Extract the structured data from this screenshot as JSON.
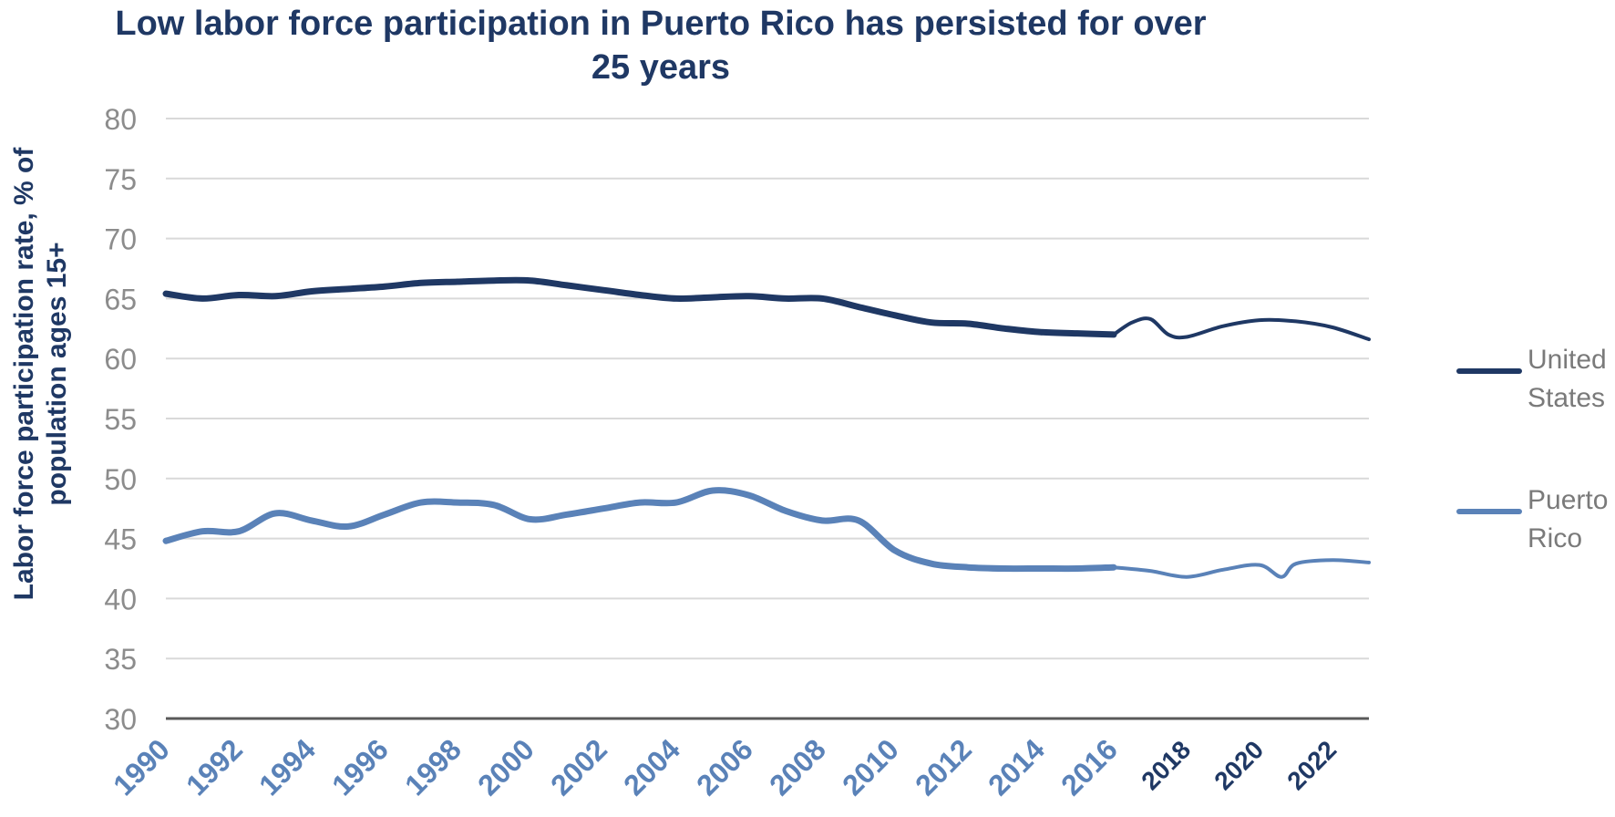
{
  "chart_data": {
    "type": "line",
    "title": "Low labor force participation in Puerto Rico has persisted for over 25 years",
    "ylabel": "Labor force participation rate, % of population ages 15+",
    "xlabel": "",
    "ylim": [
      30,
      80
    ],
    "yticks": [
      "80",
      "75",
      "70",
      "65",
      "60",
      "55",
      "50",
      "45",
      "40",
      "35",
      "30"
    ],
    "xlim": [
      1990,
      2023
    ],
    "xticks": [
      {
        "label": "1990",
        "year": 1990,
        "style": "historical"
      },
      {
        "label": "1992",
        "year": 1992,
        "style": "historical"
      },
      {
        "label": "1994",
        "year": 1994,
        "style": "historical"
      },
      {
        "label": "1996",
        "year": 1996,
        "style": "historical"
      },
      {
        "label": "1998",
        "year": 1998,
        "style": "historical"
      },
      {
        "label": "2000",
        "year": 2000,
        "style": "historical"
      },
      {
        "label": "2002",
        "year": 2002,
        "style": "historical"
      },
      {
        "label": "2004",
        "year": 2004,
        "style": "historical"
      },
      {
        "label": "2006",
        "year": 2006,
        "style": "historical"
      },
      {
        "label": "2008",
        "year": 2008,
        "style": "historical"
      },
      {
        "label": "2010",
        "year": 2010,
        "style": "historical"
      },
      {
        "label": "2012",
        "year": 2012,
        "style": "historical"
      },
      {
        "label": "2014",
        "year": 2014,
        "style": "historical"
      },
      {
        "label": "2016",
        "year": 2016,
        "style": "historical"
      },
      {
        "label": "2018",
        "year": 2018,
        "style": "projection"
      },
      {
        "label": "2020",
        "year": 2020,
        "style": "projection"
      },
      {
        "label": "2022",
        "year": 2022,
        "style": "projection"
      }
    ],
    "grid": true,
    "legend_position": "right",
    "series": [
      {
        "name": "United States",
        "color": "#1f3864",
        "x": [
          1990,
          1991,
          1992,
          1993,
          1994,
          1995,
          1996,
          1997,
          1998,
          1999,
          2000,
          2001,
          2002,
          2003,
          2004,
          2005,
          2006,
          2007,
          2008,
          2009,
          2010,
          2011,
          2012,
          2013,
          2014,
          2015,
          2016
        ],
        "values": [
          65.4,
          65.0,
          65.3,
          65.2,
          65.6,
          65.8,
          66.0,
          66.3,
          66.4,
          66.5,
          66.5,
          66.1,
          65.7,
          65.3,
          65.0,
          65.1,
          65.2,
          65.0,
          65.0,
          64.3,
          63.6,
          63.0,
          62.9,
          62.5,
          62.2,
          62.1,
          62.0
        ],
        "projection": {
          "x": [
            2016,
            2016.5,
            2017,
            2017.5,
            2018,
            2019,
            2020,
            2021,
            2022,
            2023
          ],
          "values": [
            62.0,
            63.0,
            63.3,
            62.0,
            61.8,
            62.7,
            63.2,
            63.1,
            62.6,
            61.6
          ]
        }
      },
      {
        "name": "Puerto Rico",
        "color": "#5a82b8",
        "x": [
          1990,
          1991,
          1992,
          1993,
          1994,
          1995,
          1996,
          1997,
          1998,
          1999,
          2000,
          2001,
          2002,
          2003,
          2004,
          2005,
          2006,
          2007,
          2008,
          2009,
          2010,
          2011,
          2012,
          2013,
          2014,
          2015,
          2016
        ],
        "values": [
          44.8,
          45.6,
          45.6,
          47.1,
          46.5,
          46.0,
          47.0,
          48.0,
          48.0,
          47.8,
          46.6,
          47.0,
          47.5,
          48.0,
          48.0,
          49.0,
          48.6,
          47.3,
          46.5,
          46.5,
          44.0,
          42.9,
          42.6,
          42.5,
          42.5,
          42.5,
          42.6
        ],
        "projection": {
          "x": [
            2016,
            2017,
            2018,
            2019,
            2020,
            2020.6,
            2021,
            2022,
            2023
          ],
          "values": [
            42.6,
            42.3,
            41.8,
            42.4,
            42.8,
            41.8,
            42.9,
            43.2,
            43.0
          ]
        }
      }
    ]
  },
  "legend": {
    "items": [
      {
        "line1": "United",
        "line2": "States",
        "color": "#1f3864"
      },
      {
        "line1": "Puerto",
        "line2": "Rico",
        "color": "#5a82b8"
      }
    ]
  }
}
